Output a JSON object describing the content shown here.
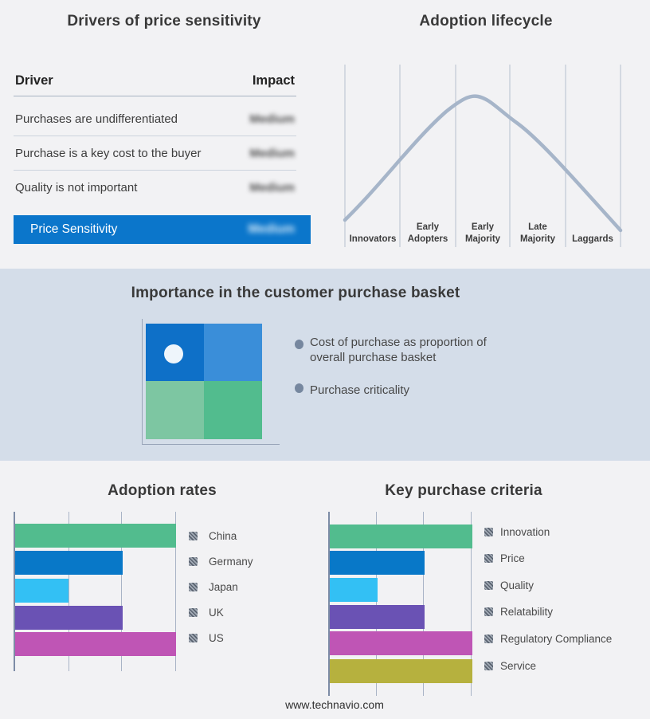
{
  "footer": {
    "url": "www.technavio.com"
  },
  "colors": {
    "page_bg": "#f2f2f4",
    "band_bg": "#d4dde9",
    "highlight_row_bg": "#0b76cb",
    "curve": "#a6b5c9",
    "bar_green": "#52bc8e",
    "bar_blue": "#0878c8",
    "bar_cyan": "#33c0f4",
    "bar_purple": "#6a52b4",
    "bar_magenta": "#bf55b5",
    "bar_olive": "#b6b13e"
  },
  "basket": {
    "title": "Importance in the customer purchase basket",
    "bullets": [
      {
        "line1": "Cost of purchase as proportion of",
        "line2": "overall purchase basket"
      },
      {
        "line1": "Purchase criticality",
        "line2": ""
      }
    ],
    "quadrant_colors": {
      "tl": "#0e70c8",
      "tr": "#3a8ed9",
      "bl": "#7dc6a2",
      "br": "#52bc8e"
    }
  },
  "lifecycle": {
    "phases": [
      {
        "line1": "Innovators",
        "line2": ""
      },
      {
        "line1": "Early",
        "line2": "Adopters"
      },
      {
        "line1": "Early",
        "line2": "Majority"
      },
      {
        "line1": "Late",
        "line2": "Majority"
      },
      {
        "line1": "Laggards",
        "line2": ""
      }
    ]
  },
  "chart_data": [
    {
      "type": "table",
      "title": "Drivers of price sensitivity",
      "columns": [
        "Driver",
        "Impact"
      ],
      "rows": [
        [
          "Purchases are undifferentiated",
          "Medium"
        ],
        [
          "Purchase is a key cost to the buyer",
          "Medium"
        ],
        [
          "Quality is not important",
          "Medium"
        ],
        [
          "Price Sensitivity",
          "Medium"
        ]
      ],
      "notes": "Impact values are blurred/redacted in the source image; last row is highlighted blue"
    },
    {
      "type": "line",
      "title": "Adoption lifecycle",
      "categories": [
        "Innovators",
        "Early Adopters",
        "Early Majority",
        "Late Majority",
        "Laggards"
      ],
      "values": [
        0.28,
        0.62,
        0.95,
        0.68,
        0.3
      ],
      "xlabel": "",
      "ylabel": "",
      "notes": "unlabeled bell curve peaking near Early Majority; vertical gridlines only"
    },
    {
      "type": "bar",
      "title": "Adoption rates",
      "orientation": "horizontal",
      "categories": [
        "China",
        "Germany",
        "Japan",
        "UK",
        "US"
      ],
      "values": [
        3,
        2,
        1,
        2,
        3
      ],
      "xlim": [
        0,
        3
      ],
      "colors": [
        "#52bc8e",
        "#0878c8",
        "#33c0f4",
        "#6a52b4",
        "#bf55b5"
      ],
      "notes": "no numeric axis labels; legend swatches are hatched/redacted",
      "legend_position": "right"
    },
    {
      "type": "bar",
      "title": "Key purchase criteria",
      "orientation": "horizontal",
      "categories": [
        "Innovation",
        "Price",
        "Quality",
        "Relatability",
        "Regulatory Compliance",
        "Service"
      ],
      "values": [
        3,
        2,
        1,
        2,
        3,
        3
      ],
      "xlim": [
        0,
        3
      ],
      "colors": [
        "#52bc8e",
        "#0878c8",
        "#33c0f4",
        "#6a52b4",
        "#bf55b5",
        "#b6b13e"
      ],
      "notes": "no numeric axis labels; legend swatches are hatched/redacted",
      "legend_position": "right"
    }
  ]
}
